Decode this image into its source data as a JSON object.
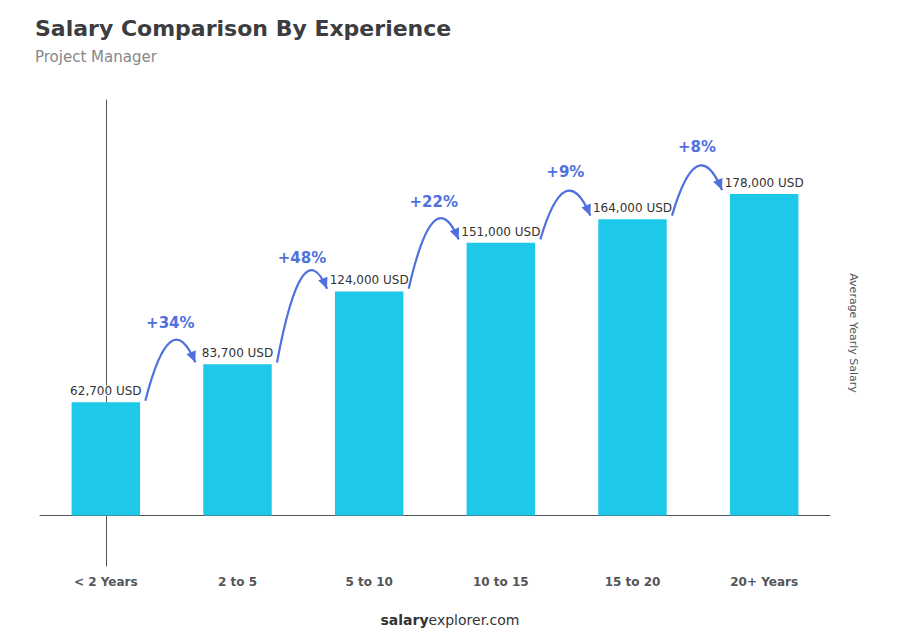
{
  "chart_data": {
    "type": "bar",
    "title": "Salary Comparison By Experience",
    "subtitle": "Project Manager",
    "categories": [
      "< 2 Years",
      "2 to 5",
      "5 to 10",
      "10 to 15",
      "15 to 20",
      "20+ Years"
    ],
    "values": [
      62700,
      83700,
      124000,
      151000,
      164000,
      178000
    ],
    "value_labels": [
      "62,700 USD",
      "83,700 USD",
      "124,000 USD",
      "151,000 USD",
      "164,000 USD",
      "178,000 USD"
    ],
    "data_labels": true,
    "color": "#1EC8E8",
    "ylabel": "Average Yearly Salary",
    "ylim": [
      -28000,
      230000
    ],
    "annotations": [
      "+34%",
      "+48%",
      "+22%",
      "+9%",
      "+8%"
    ],
    "footer": [
      "salary",
      "explorer.com"
    ],
    "grid": false,
    "tick_labels": "x"
  }
}
